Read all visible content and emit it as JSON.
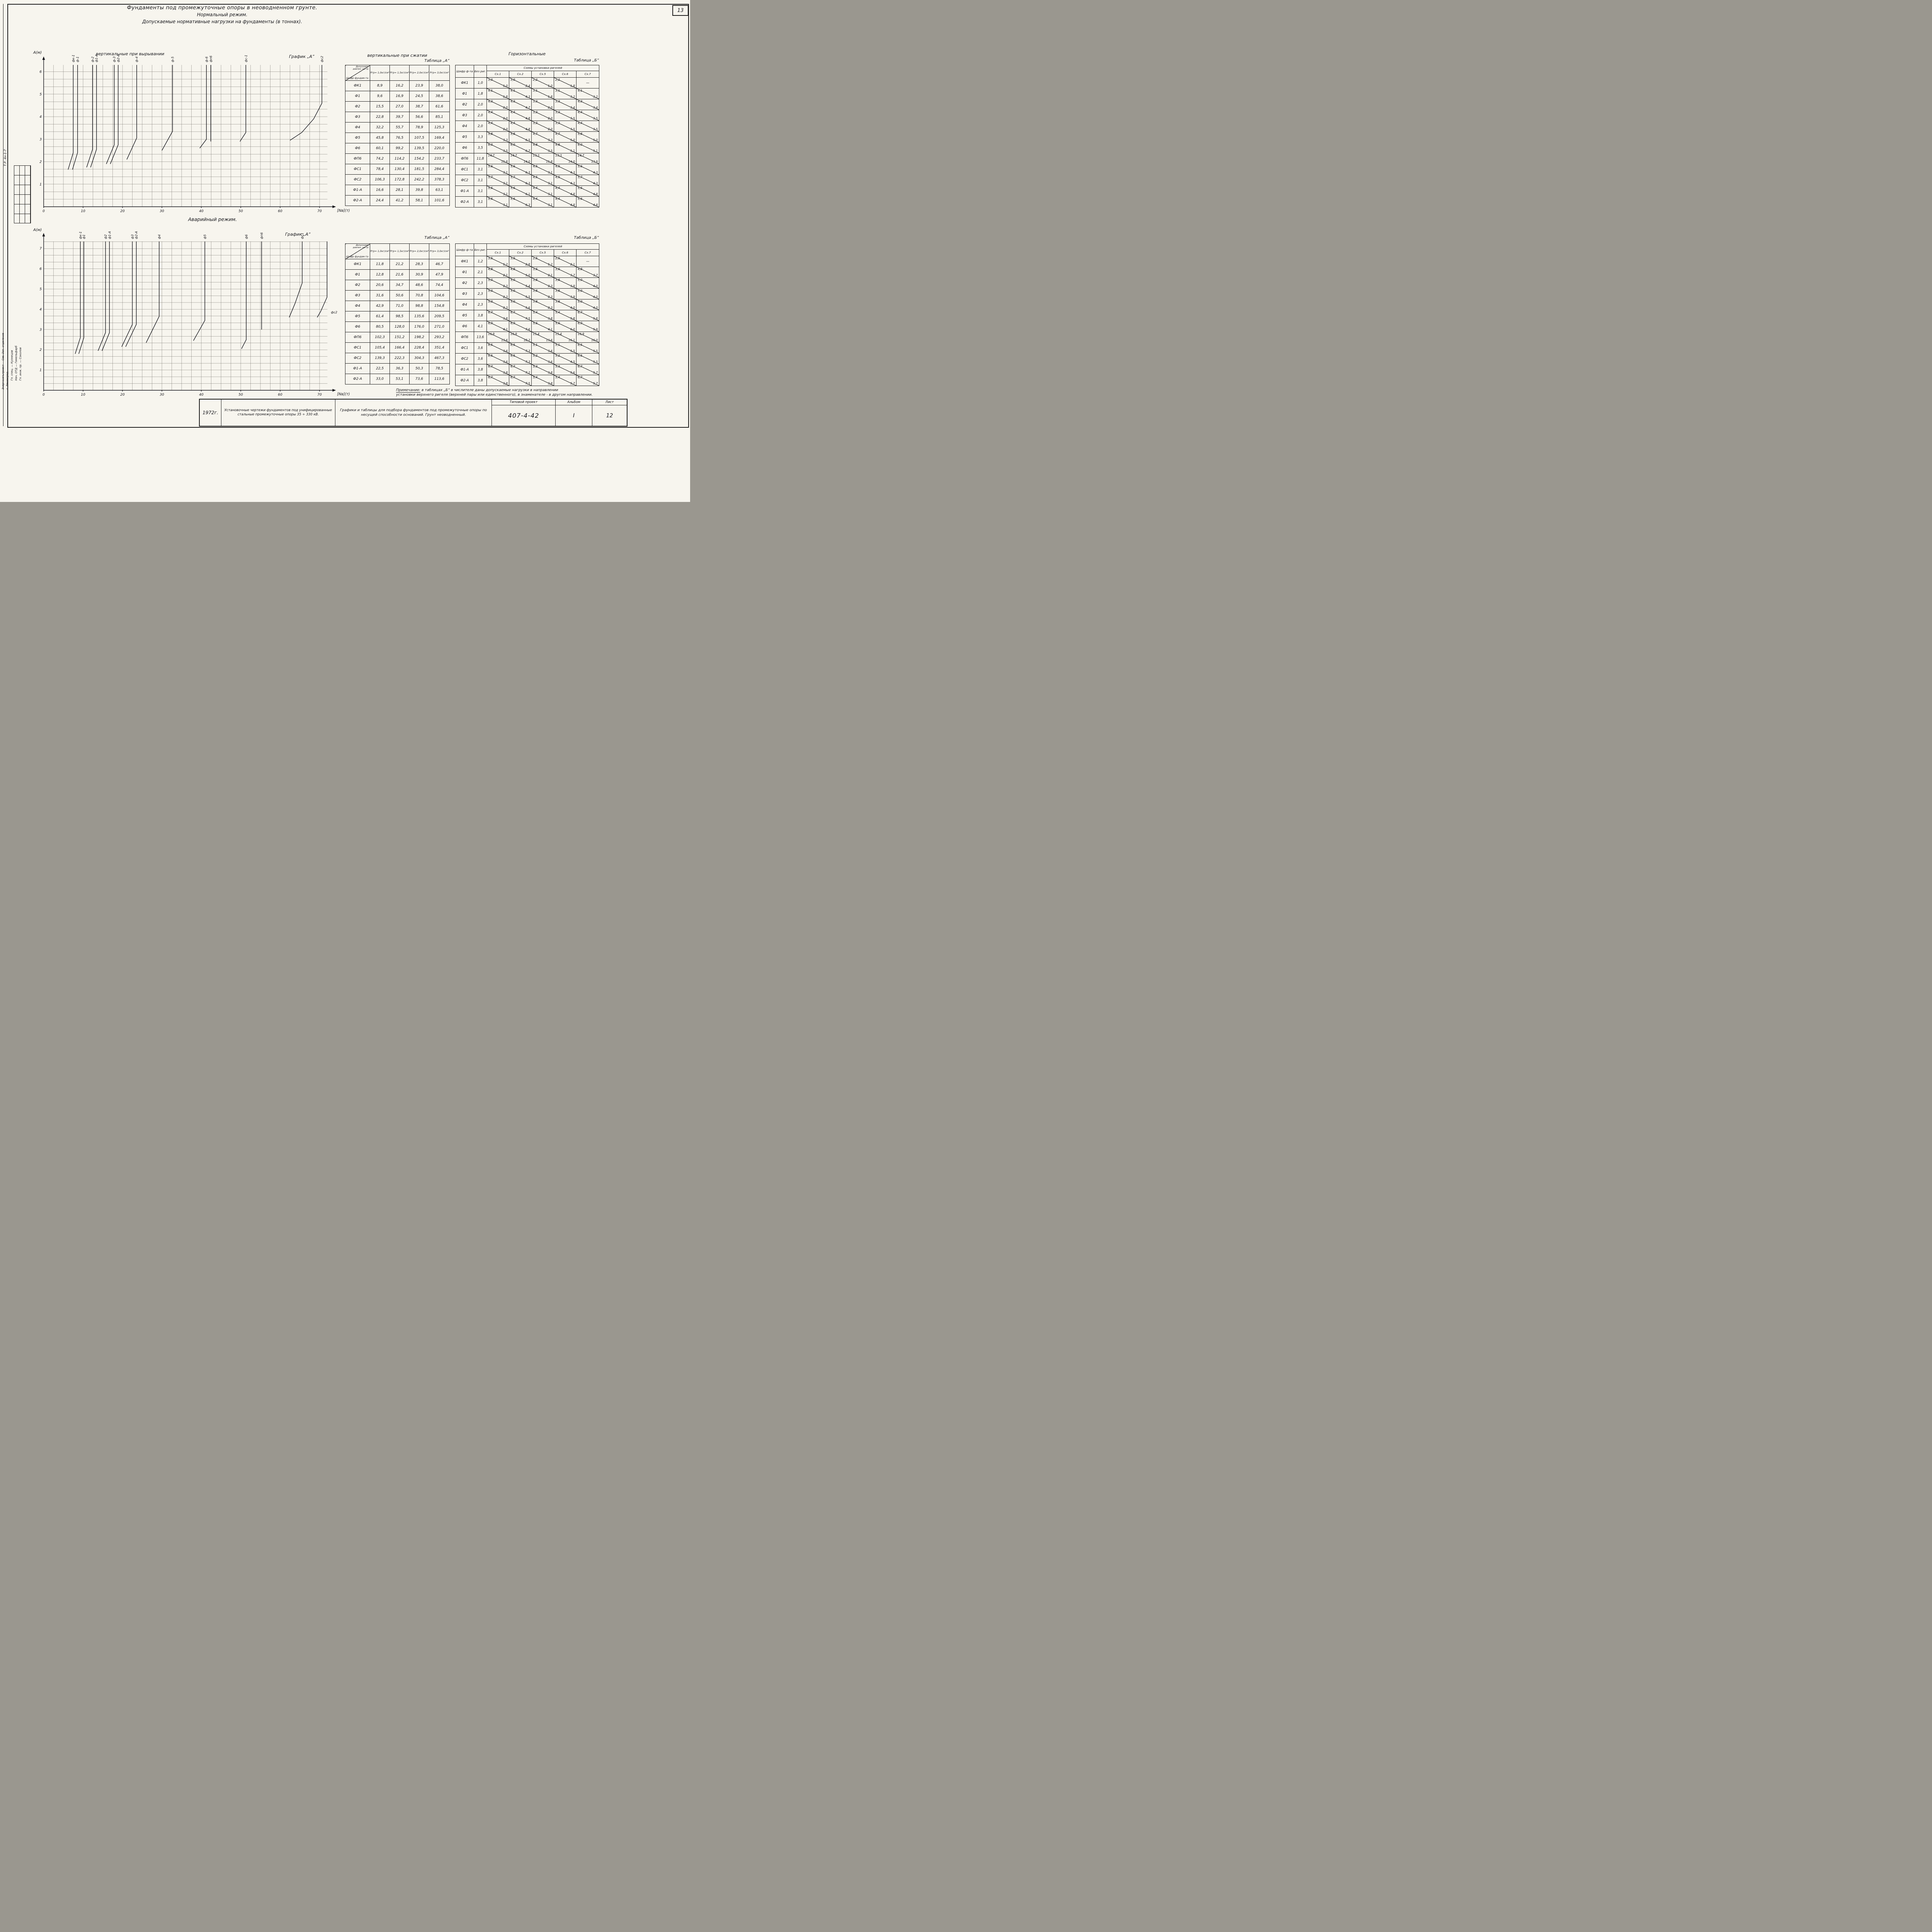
{
  "sheet": {
    "corner_number": "13"
  },
  "header": {
    "title": "Фундаменты под промежуточные опоры в неоводненном грунте.",
    "mode_normal": "Нормальный режим.",
    "subtitle": "Допускаемые нормативные нагрузки на фундаменты (в тоннах).",
    "mode_emergency": "Аварийный режим."
  },
  "labels": {
    "pullout": "вертикальные при вырывании",
    "compress": "вертикальные при сжатии",
    "horizontal": "Горизонтальные",
    "grafik": "График „А”",
    "table_a": "Таблица „А”",
    "table_b": "Таблица „Б”",
    "axis_y": "А(м)",
    "axis_x": "[Nв](т)",
    "fs2_side": "фс2"
  },
  "chart_data": [
    {
      "type": "line",
      "title": "Нормальный режим — вертикальные при вырывании. График „А”",
      "xlabel": "[Nв](т)",
      "ylabel": "А(м)",
      "xlim": [
        0,
        72
      ],
      "ylim": [
        0,
        6.3
      ],
      "grid": true,
      "xticks": [
        0,
        10,
        20,
        30,
        40,
        50,
        60,
        70
      ],
      "yticks": [
        1,
        2,
        3,
        4,
        5,
        6
      ],
      "series": [
        {
          "name": "фк-1",
          "points": [
            [
              7.5,
              6.3
            ],
            [
              7.5,
              2.4
            ],
            [
              6.2,
              1.65
            ]
          ]
        },
        {
          "name": "ф-1",
          "points": [
            [
              8.6,
              6.3
            ],
            [
              8.6,
              2.4
            ],
            [
              7.3,
              1.65
            ]
          ]
        },
        {
          "name": "ф-2",
          "points": [
            [
              12.4,
              6.3
            ],
            [
              12.4,
              2.55
            ],
            [
              10.9,
              1.75
            ]
          ]
        },
        {
          "name": "ф1-А",
          "points": [
            [
              13.4,
              6.3
            ],
            [
              13.4,
              2.55
            ],
            [
              11.9,
              1.75
            ]
          ]
        },
        {
          "name": "ф-3",
          "points": [
            [
              17.9,
              6.3
            ],
            [
              17.9,
              2.75
            ],
            [
              15.9,
              1.9
            ]
          ]
        },
        {
          "name": "ф2-А",
          "points": [
            [
              18.9,
              6.3
            ],
            [
              18.9,
              2.75
            ],
            [
              16.9,
              1.9
            ]
          ]
        },
        {
          "name": "ф-4",
          "points": [
            [
              23.6,
              6.3
            ],
            [
              23.6,
              3.05
            ],
            [
              21.1,
              2.1
            ]
          ]
        },
        {
          "name": "ф-5",
          "points": [
            [
              32.7,
              6.3
            ],
            [
              32.7,
              3.35
            ],
            [
              30.0,
              2.5
            ]
          ]
        },
        {
          "name": "ф-6",
          "points": [
            [
              41.3,
              6.3
            ],
            [
              41.3,
              3.0
            ],
            [
              39.6,
              2.6
            ]
          ]
        },
        {
          "name": "фп6",
          "points": [
            [
              42.4,
              6.3
            ],
            [
              42.4,
              2.9
            ]
          ]
        },
        {
          "name": "фс-1",
          "points": [
            [
              51.3,
              6.3
            ],
            [
              51.3,
              3.3
            ],
            [
              49.8,
              2.9
            ]
          ]
        },
        {
          "name": "фс2",
          "points": [
            [
              70.6,
              6.3
            ],
            [
              70.6,
              4.6
            ],
            [
              68.5,
              3.9
            ],
            [
              65.5,
              3.3
            ],
            [
              62.5,
              2.95
            ]
          ]
        }
      ]
    },
    {
      "type": "line",
      "title": "Аварийный режим — вертикальные при вырывании. График „А”",
      "xlabel": "[Nв](т)",
      "ylabel": "А(м)",
      "xlim": [
        0,
        72
      ],
      "ylim": [
        0,
        7.35
      ],
      "grid": true,
      "xticks": [
        0,
        10,
        20,
        30,
        40,
        50,
        60,
        70
      ],
      "yticks": [
        1,
        2,
        3,
        4,
        5,
        6,
        7
      ],
      "series": [
        {
          "name": "фк-1",
          "points": [
            [
              9.3,
              7.35
            ],
            [
              9.3,
              2.6
            ],
            [
              8.0,
              1.8
            ]
          ]
        },
        {
          "name": "ф1",
          "points": [
            [
              10.2,
              7.35
            ],
            [
              10.2,
              2.6
            ],
            [
              8.9,
              1.8
            ]
          ]
        },
        {
          "name": "ф2",
          "points": [
            [
              15.7,
              7.35
            ],
            [
              15.7,
              2.85
            ],
            [
              13.8,
              1.95
            ]
          ]
        },
        {
          "name": "ф1-А",
          "points": [
            [
              16.7,
              7.35
            ],
            [
              16.7,
              2.85
            ],
            [
              14.8,
              1.95
            ]
          ]
        },
        {
          "name": "ф3",
          "points": [
            [
              22.5,
              7.35
            ],
            [
              22.5,
              3.25
            ],
            [
              19.8,
              2.15
            ]
          ]
        },
        {
          "name": "ф2-А",
          "points": [
            [
              23.5,
              7.35
            ],
            [
              23.5,
              3.25
            ],
            [
              20.8,
              2.15
            ]
          ]
        },
        {
          "name": "ф4",
          "points": [
            [
              29.3,
              7.35
            ],
            [
              29.3,
              3.65
            ],
            [
              26.0,
              2.35
            ]
          ]
        },
        {
          "name": "ф5",
          "points": [
            [
              40.9,
              7.35
            ],
            [
              40.9,
              3.45
            ],
            [
              38.0,
              2.45
            ]
          ]
        },
        {
          "name": "ф6",
          "points": [
            [
              51.4,
              7.35
            ],
            [
              51.4,
              2.5
            ],
            [
              50.2,
              2.05
            ]
          ]
        },
        {
          "name": "фп6",
          "points": [
            [
              55.3,
              7.35
            ],
            [
              55.3,
              3.0
            ]
          ]
        },
        {
          "name": "фс1",
          "points": [
            [
              65.6,
              7.35
            ],
            [
              65.6,
              5.3
            ],
            [
              63.8,
              4.3
            ],
            [
              62.3,
              3.6
            ]
          ]
        },
        {
          "name": "фс2",
          "points": [
            [
              71.9,
              7.35
            ],
            [
              71.9,
              4.6
            ],
            [
              70.3,
              3.9
            ],
            [
              69.4,
              3.6
            ]
          ],
          "label_at": [
            72.6,
            3.8
          ],
          "label_rot": 0
        }
      ]
    }
  ],
  "table_a_header": {
    "corner_top": "Допускаем. давлен. на гр.",
    "corner_bottom": "Шифр фундам-та",
    "cols": [
      "Ргр= 1,0кг/см²",
      "Ргр= 1,5кг/см²",
      "Ргр= 2,0кг/см²",
      "Ргр= 3,0кг/см²"
    ]
  },
  "table_b_header": {
    "col1": "Шифр ф-та",
    "col2": "Без риг.",
    "group": "Схемы установки ригелей",
    "cols": [
      "Сх.1",
      "Сх.2",
      "Сх.5",
      "Сх.6",
      "Сх.7"
    ]
  },
  "tables": {
    "normal_a": {
      "rows": [
        [
          "ФК1",
          "8,9",
          "16,2",
          "23,9",
          "38,0"
        ],
        [
          "Ф1",
          "9,6",
          "16,9",
          "24,5",
          "38,6"
        ],
        [
          "Ф2",
          "15,5",
          "27,0",
          "38,7",
          "61,6"
        ],
        [
          "Ф3",
          "22,8",
          "39,7",
          "56,6",
          "85,1"
        ],
        [
          "Ф4",
          "32,2",
          "55,7",
          "78,9",
          "125,3"
        ],
        [
          "Ф5",
          "45,8",
          "76,5",
          "107,5",
          "169,4"
        ],
        [
          "Ф6",
          "60,1",
          "99,2",
          "139,5",
          "220,0"
        ],
        [
          "ФП6",
          "74,2",
          "114,2",
          "154,2",
          "233,7"
        ],
        [
          "ФС1",
          "78,4",
          "130,4",
          "181,5",
          "284,4"
        ],
        [
          "ФС2",
          "106,3",
          "172,8",
          "242,2",
          "378,3"
        ],
        [
          "Ф1-А",
          "16,6",
          "28,1",
          "39,8",
          "63,1"
        ],
        [
          "Ф2-А",
          "24,4",
          "41,2",
          "58,1",
          "101,6"
        ]
      ]
    },
    "normal_b": {
      "rows": [
        [
          "ФК1",
          "1,0",
          "3,0|1,0",
          "3,0|2,4",
          "2,2|1,0",
          "2,2|1,8",
          "—"
        ],
        [
          "Ф1",
          "1,8",
          "4,1|1,8",
          "4,1|4,3",
          "3,1|1,8",
          "3,1|3,2",
          "4,1|3,2"
        ],
        [
          "Ф2",
          "2,0",
          "4,3|2,0",
          "4,3|4,7",
          "3,3|2,0",
          "3,3|3,4",
          "4,3|3,4"
        ],
        [
          "Ф3",
          "2,0",
          "4,4|2,0",
          "4,4|4,8",
          "3,3|2,0",
          "3,3|3,5",
          "4,4|3,5"
        ],
        [
          "Ф4",
          "2,0",
          "4,4|2,0",
          "4,4|4,8",
          "3,3|2,0",
          "3,3|3,5",
          "4,4|3,5"
        ],
        [
          "Ф5",
          "3,3",
          "5,8|3,3",
          "5,8|6,5",
          "4,7|3,3",
          "4,7|5,0",
          "5,8|5,0"
        ],
        [
          "Ф6",
          "3,5",
          "6,0|3,5",
          "6,0|6,7",
          "4,8|3,5",
          "4,8|5,1",
          "6,0|5,1"
        ],
        [
          "ФП6",
          "11,8",
          "14,7|11,8",
          "14,7|14,0",
          "13,3|11,8",
          "13,3|14,0",
          "14,7|13,9"
        ],
        [
          "ФС1",
          "3,1",
          "5,6|3,1",
          "5,6|6,3",
          "4,5|3,1",
          "4,5|4,3",
          "5,6|4,3"
        ],
        [
          "ФС2",
          "3,1",
          "5,7|3,1",
          "5,7|6,3",
          "4,5|3,1",
          "4,5|4,3",
          "5,7|4,3"
        ],
        [
          "Ф1-А",
          "3,1",
          "5,6|3,1",
          "5,6|6,1",
          "4,4|3,1",
          "4,4|4,8",
          "5,6|4,8"
        ],
        [
          "Ф2-А",
          "3,1",
          "5,6|3,1",
          "5,6|6,3",
          "4,4|3,1",
          "4,4|4,8",
          "5,6|4,8"
        ]
      ]
    },
    "emergency_a": {
      "rows": [
        [
          "ФК1",
          "11,8",
          "21,2",
          "28,3",
          "46,7"
        ],
        [
          "Ф1",
          "12,8",
          "21,6",
          "30,9",
          "47,9"
        ],
        [
          "Ф2",
          "20,6",
          "34,7",
          "48,6",
          "74,4"
        ],
        [
          "Ф3",
          "31,6",
          "50,6",
          "70,8",
          "104,6"
        ],
        [
          "Ф4",
          "42,9",
          "71,0",
          "98,8",
          "154,8"
        ],
        [
          "Ф5",
          "61,4",
          "98,5",
          "135,6",
          "209,5"
        ],
        [
          "Ф6",
          "80,5",
          "128,0",
          "176,0",
          "271,0"
        ],
        [
          "ФП6",
          "102,3",
          "151,2",
          "198,2",
          "293,2"
        ],
        [
          "ФС1",
          "105,4",
          "166,4",
          "228,4",
          "351,4"
        ],
        [
          "ФС2",
          "139,3",
          "222,3",
          "304,3",
          "467,3"
        ],
        [
          "Ф1-А",
          "22,5",
          "36,3",
          "50,3",
          "78,5"
        ],
        [
          "Ф2-А",
          "33,0",
          "53,1",
          "73,6",
          "113,6"
        ]
      ]
    },
    "emergency_b": {
      "rows": [
        [
          "ФК1",
          "1,2",
          "3,5|1,2",
          "3,5|2,8",
          "2,5|1,2",
          "2,5|2,1",
          "—"
        ],
        [
          "Ф1",
          "2,1",
          "4,8|2,1",
          "4,8|5,0",
          "3,6|2,1",
          "3,6|3,7",
          "4,8|3,7"
        ],
        [
          "Ф2",
          "2,3",
          "5,0|2,3",
          "5,0|5,4",
          "3,8|2,3",
          "3,8|3,9",
          "5,0|4,0"
        ],
        [
          "Ф3",
          "2,3",
          "5,0|2,3",
          "5,0|5,5",
          "3,8|2,3",
          "3,8|3,9",
          "5,0|4,0"
        ],
        [
          "Ф4",
          "2,3",
          "5,0|2,3",
          "5,0|5,6",
          "3,8|2,3",
          "3,8|4,0",
          "5,0|4,0"
        ],
        [
          "Ф5",
          "3,8",
          "6,7|3,8",
          "6,7|7,5",
          "5,4|3,8",
          "5,4|5,8",
          "6,7|5,8"
        ],
        [
          "Ф6",
          "4,1",
          "6,9|4,1",
          "6,9|7,6",
          "5,6|4,1",
          "5,6|6,0",
          "6,9|5,9"
        ],
        [
          "ФП6",
          "13,6",
          "16,9|13,6",
          "16,9|18,2",
          "15,4|13,6",
          "15,4|16,1",
          "16,9|16,0"
        ],
        [
          "ФС1",
          "3,6",
          "6,5|3,6",
          "6,5|7,3",
          "5,1|3,6",
          "5,1|5,5",
          "6,5|5,5"
        ],
        [
          "ФС2",
          "3,6",
          "6,5|3,6",
          "6,5|7,3",
          "5,2|3,6",
          "5,2|4,5",
          "6,5|5,5"
        ],
        [
          "Ф1-А",
          "3,8",
          "6,7|3,8",
          "6,7|7,2",
          "5,3|3,8",
          "5,3|5,6",
          "6,7|5,7"
        ],
        [
          "Ф2-А",
          "3,8",
          "6,7|3,8",
          "6,7|7,5",
          "5,4|3,8",
          "5,4|5,7",
          "6,7|5,7"
        ]
      ]
    }
  },
  "note": {
    "label": "Примечание:",
    "line1": "в таблицах „Б” в числителе даны допускаемые нагрузки в направлении",
    "line2": "установки верхнего ригеля (верхней пары или единственного), в знаменателе - в другом направлении."
  },
  "titleblock": {
    "year": "1972г.",
    "install": "Установочные чертежи фундаментов под унифицированные стальные промежуточные опоры 35 ÷ 330 кВ.",
    "graphs": "Графики и таблицы для подбора фундаментов под промежуточные опоры по несущей способности оснований. Грунт неоводненный.",
    "tp_label": "Типовой проект",
    "tp_number": "407-4-42",
    "album_label": "Альбом",
    "album_value": "I",
    "list_label": "Лист",
    "list_value": "12"
  },
  "margin": {
    "stamp": "Т.Р. 4н-1-7",
    "org1": "Энергосетьпроект — Сев.-Зап. отделение",
    "org2": "г. Ленинград",
    "sign1": "Гл. спец. — Кузнецов",
    "sign2": "Нач. ОТД — Гимельфарб",
    "sign3": "Гл. инж. пр. — Соколов"
  }
}
